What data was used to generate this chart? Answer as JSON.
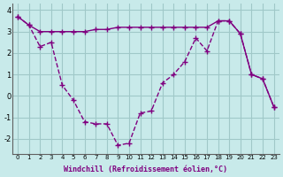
{
  "line1_x": [
    0,
    1,
    2,
    3,
    4,
    5,
    6,
    7,
    8,
    9,
    10,
    11,
    12,
    13,
    14,
    15,
    16,
    17,
    18,
    19,
    20,
    21,
    22,
    23
  ],
  "line1_y": [
    3.7,
    3.3,
    3.0,
    3.0,
    3.0,
    3.0,
    3.0,
    3.1,
    3.1,
    3.2,
    3.2,
    3.2,
    3.2,
    3.2,
    3.2,
    3.2,
    3.2,
    3.2,
    3.5,
    3.5,
    2.9,
    1.0,
    0.8,
    -0.5
  ],
  "line2_x": [
    0,
    1,
    2,
    3,
    4,
    5,
    6,
    7,
    8,
    9,
    10,
    11,
    12,
    13,
    14,
    15,
    16,
    17,
    18,
    19,
    20,
    21,
    22,
    23
  ],
  "line2_y": [
    3.7,
    3.3,
    2.3,
    2.5,
    0.5,
    -0.2,
    -1.2,
    -1.3,
    -1.3,
    -2.3,
    -2.2,
    -0.8,
    -0.7,
    0.6,
    1.0,
    1.6,
    2.7,
    2.1,
    3.5,
    3.5,
    2.9,
    1.0,
    0.8,
    -0.5
  ],
  "line_color": "#800080",
  "bg_color": "#c8eaea",
  "grid_color": "#a0c8c8",
  "xlabel": "Windchill (Refroidissement éolien,°C)",
  "yticks": [
    -2,
    -1,
    0,
    1,
    2,
    3,
    4
  ],
  "xticks": [
    0,
    1,
    2,
    3,
    4,
    5,
    6,
    7,
    8,
    9,
    10,
    11,
    12,
    13,
    14,
    15,
    16,
    17,
    18,
    19,
    20,
    21,
    22,
    23
  ],
  "xlim": [
    -0.5,
    23.5
  ],
  "ylim": [
    -2.7,
    4.3
  ]
}
